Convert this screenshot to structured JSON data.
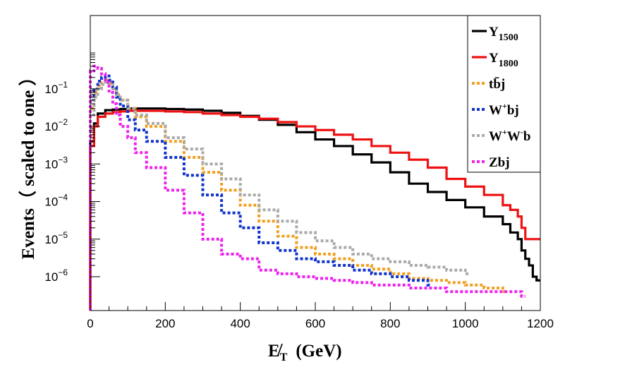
{
  "chart_data": {
    "type": "line",
    "title": "",
    "xlabel": "E̸T (GeV)",
    "xlabel_main": "E̸",
    "xlabel_sub": "T",
    "xlabel_unit": "(GeV)",
    "ylabel": "Events（ scaled to one ）",
    "xlim": [
      0,
      1200
    ],
    "ylim_log10": [
      -6.9,
      0.95
    ],
    "y_scale": "log",
    "x_ticks": [
      0,
      200,
      400,
      600,
      800,
      1000,
      1200
    ],
    "y_ticks": [
      {
        "base": "10",
        "exp": "−1",
        "log": -1
      },
      {
        "base": "10",
        "exp": "−2",
        "log": -2
      },
      {
        "base": "10",
        "exp": "−3",
        "log": -3
      },
      {
        "base": "10",
        "exp": "−4",
        "log": -4
      },
      {
        "base": "10",
        "exp": "−5",
        "log": -5
      },
      {
        "base": "10",
        "exp": "−6",
        "log": -6
      }
    ],
    "legend_position": "top-right",
    "series": [
      {
        "name": "Y1500",
        "label_main": "Y",
        "label_sub": "1500",
        "color": "#000000",
        "dashed": false,
        "x": [
          0,
          10,
          20,
          40,
          60,
          80,
          100,
          150,
          200,
          250,
          300,
          350,
          400,
          450,
          500,
          550,
          600,
          650,
          700,
          750,
          800,
          850,
          900,
          950,
          1000,
          1050,
          1100,
          1120,
          1140,
          1150,
          1160,
          1170,
          1180,
          1190
        ],
        "y": [
          0.004,
          0.012,
          0.022,
          0.027,
          0.028,
          0.029,
          0.03,
          0.03,
          0.029,
          0.028,
          0.026,
          0.023,
          0.019,
          0.015,
          0.011,
          0.007,
          0.0045,
          0.003,
          0.0018,
          0.0011,
          0.0006,
          0.0003,
          0.00018,
          0.00011,
          7e-05,
          4e-05,
          2.5e-05,
          1.5e-05,
          1e-05,
          5e-06,
          3e-06,
          2e-06,
          1e-06,
          8e-07
        ]
      },
      {
        "name": "Y1800",
        "label_main": "Y",
        "label_sub": "1800",
        "color": "#ee1111",
        "dashed": false,
        "x": [
          0,
          10,
          20,
          40,
          60,
          80,
          100,
          150,
          200,
          250,
          300,
          350,
          400,
          450,
          500,
          550,
          600,
          650,
          700,
          750,
          800,
          850,
          900,
          950,
          1000,
          1050,
          1100,
          1120,
          1140,
          1150,
          1160,
          1170,
          1190
        ],
        "y": [
          0.003,
          0.01,
          0.018,
          0.022,
          0.024,
          0.025,
          0.026,
          0.026,
          0.025,
          0.024,
          0.022,
          0.02,
          0.018,
          0.016,
          0.013,
          0.01,
          0.008,
          0.006,
          0.0045,
          0.003,
          0.002,
          0.0013,
          0.0008,
          0.0004,
          0.00025,
          0.00015,
          8e-05,
          6e-05,
          4e-05,
          2e-05,
          1e-05,
          1e-05,
          1e-05
        ]
      },
      {
        "name": "tbj",
        "label_main": "tb̄j",
        "label_sub": "",
        "color": "#f0a020",
        "dashed": true,
        "x": [
          0,
          10,
          20,
          30,
          40,
          50,
          60,
          70,
          80,
          100,
          120,
          150,
          200,
          250,
          300,
          350,
          400,
          450,
          500,
          550,
          600,
          650,
          700,
          750,
          800,
          850,
          900,
          950,
          1000,
          1050,
          1100
        ],
        "y": [
          0.03,
          0.08,
          0.12,
          0.15,
          0.17,
          0.14,
          0.1,
          0.07,
          0.05,
          0.03,
          0.018,
          0.01,
          0.004,
          0.0015,
          0.0006,
          0.0002,
          8e-05,
          3e-05,
          1.2e-05,
          6e-06,
          4e-06,
          3e-06,
          2e-06,
          1.6e-06,
          1.2e-06,
          9e-07,
          8e-07,
          7e-07,
          6e-07,
          5e-07,
          4e-07
        ]
      },
      {
        "name": "W+bj",
        "label_main": "W",
        "label_sup": "+",
        "label_rest": "bj",
        "label_sub": "",
        "color": "#1133cc",
        "dashed": true,
        "x": [
          0,
          10,
          20,
          30,
          40,
          50,
          60,
          70,
          80,
          100,
          120,
          150,
          200,
          250,
          300,
          350,
          400,
          450,
          500,
          550,
          600,
          650,
          700,
          750,
          800,
          850,
          900
        ],
        "y": [
          0.05,
          0.1,
          0.16,
          0.2,
          0.22,
          0.17,
          0.11,
          0.06,
          0.035,
          0.015,
          0.008,
          0.004,
          0.0015,
          0.0005,
          0.00015,
          5e-05,
          2e-05,
          8e-06,
          5e-06,
          3e-06,
          2.5e-06,
          2e-06,
          1.5e-06,
          1.2e-06,
          1e-06,
          8e-07,
          6e-07
        ]
      },
      {
        "name": "W+W-b",
        "label_main": "W",
        "label_sup": "+",
        "label_rest": "W",
        "label_sup2": "-",
        "label_rest2": "b",
        "label_sub": "",
        "color": "#aaaaaa",
        "dashed": true,
        "x": [
          0,
          10,
          20,
          30,
          40,
          50,
          60,
          70,
          80,
          100,
          120,
          150,
          200,
          250,
          300,
          350,
          400,
          450,
          500,
          550,
          600,
          650,
          700,
          750,
          800,
          850,
          900,
          950,
          1000
        ],
        "y": [
          0.02,
          0.06,
          0.1,
          0.13,
          0.15,
          0.13,
          0.1,
          0.07,
          0.05,
          0.03,
          0.02,
          0.012,
          0.005,
          0.0025,
          0.001,
          0.0004,
          0.00015,
          6e-05,
          3e-05,
          1.5e-05,
          9e-06,
          6e-06,
          4e-06,
          3e-06,
          2.5e-06,
          2e-06,
          1.8e-06,
          1.5e-06,
          1.2e-06
        ]
      },
      {
        "name": "Zbj",
        "label_main": "Zbj",
        "label_sub": "",
        "color": "#ee22ee",
        "dashed": true,
        "x": [
          0,
          10,
          20,
          30,
          40,
          50,
          60,
          70,
          80,
          100,
          120,
          150,
          200,
          250,
          300,
          350,
          400,
          450,
          500,
          550,
          600,
          650,
          700,
          750,
          800,
          850,
          900,
          950,
          1000,
          1050,
          1100,
          1150
        ],
        "y": [
          0.3,
          0.4,
          0.35,
          0.25,
          0.15,
          0.08,
          0.04,
          0.02,
          0.01,
          0.005,
          0.002,
          0.0008,
          0.0002,
          5e-05,
          1e-05,
          4e-06,
          3e-06,
          1.5e-06,
          1.2e-06,
          1e-06,
          9e-07,
          8e-07,
          7e-07,
          6e-07,
          6e-07,
          5e-07,
          5e-07,
          4e-07,
          4e-07,
          4e-07,
          4e-07,
          3e-07
        ]
      }
    ]
  }
}
